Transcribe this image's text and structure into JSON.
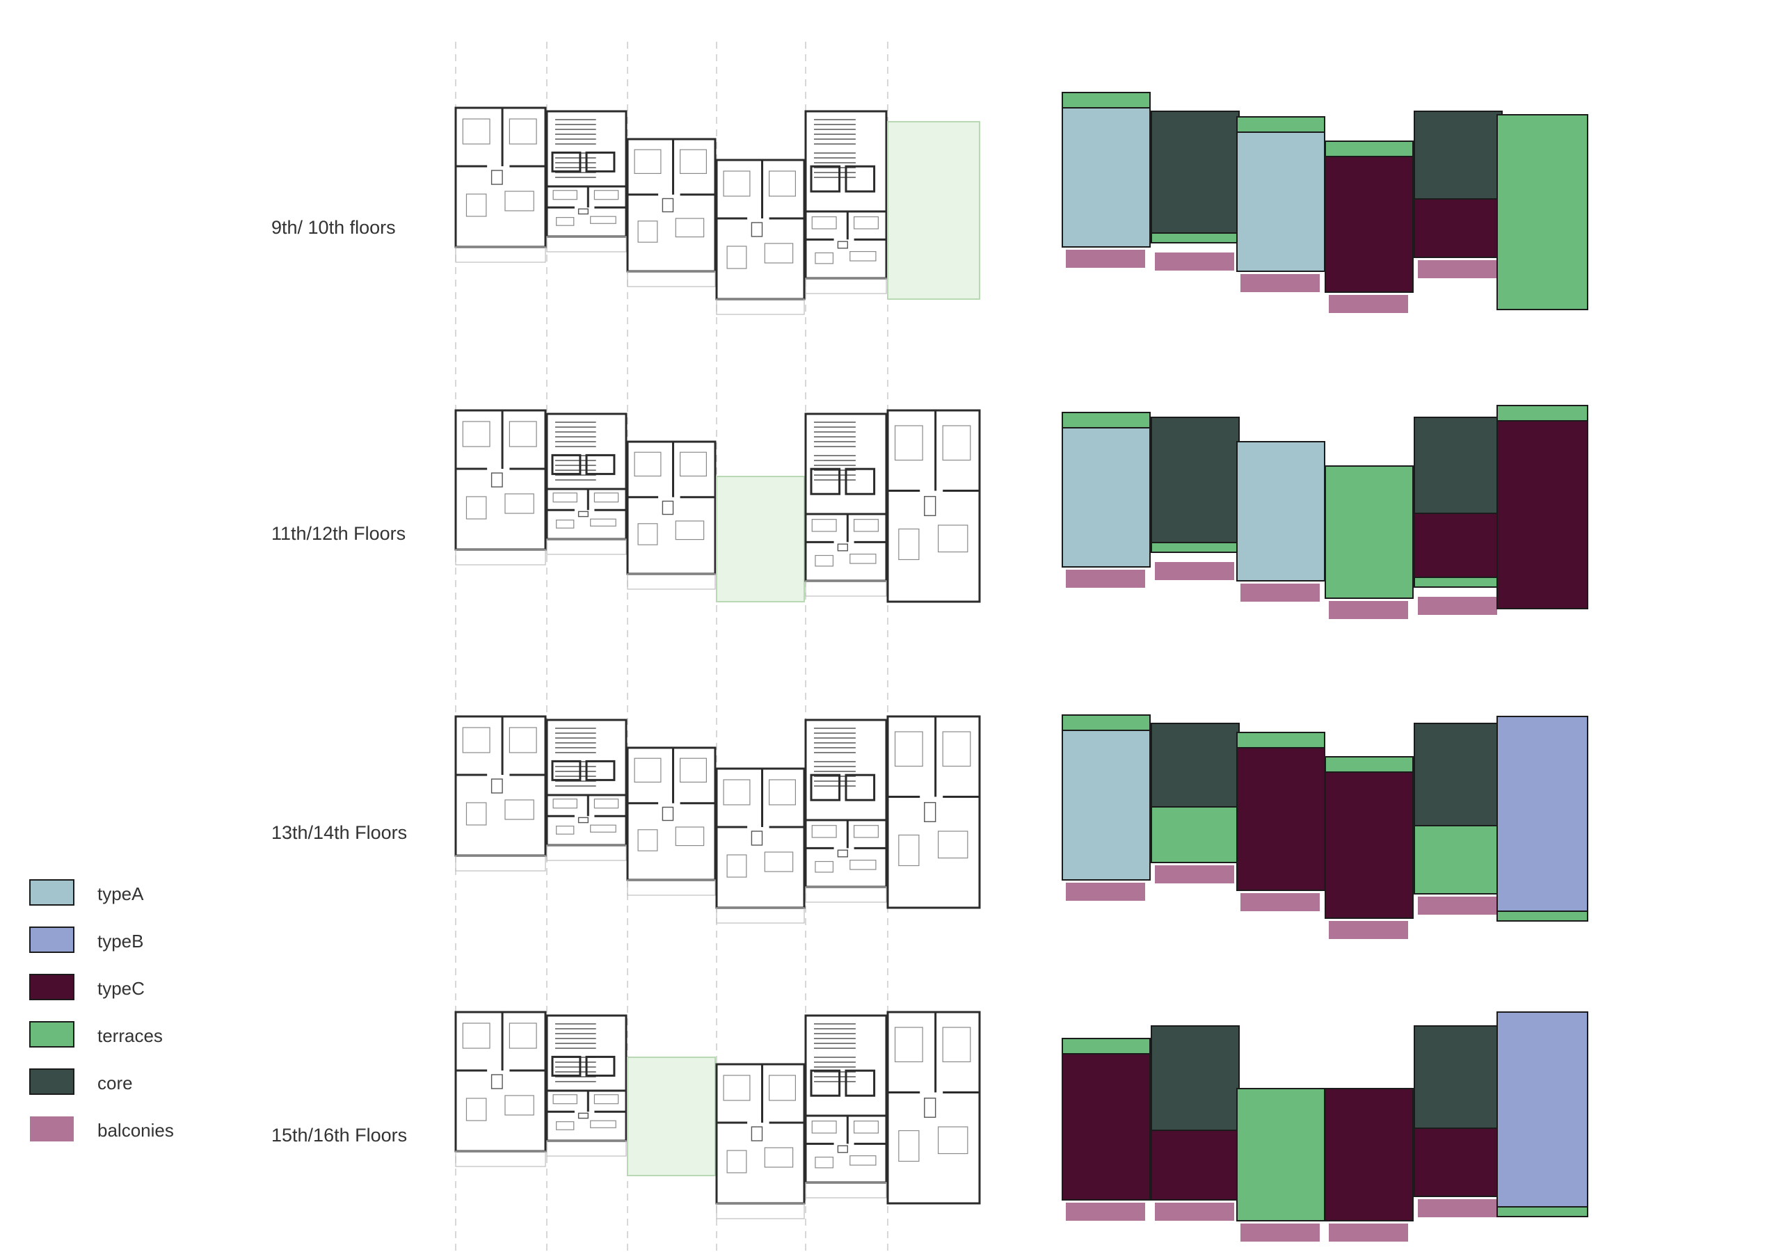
{
  "colors": {
    "typeA": "#a3c4cc",
    "typeB": "#93a2d0",
    "typeC": "#4b0d2d",
    "terraces": "#6abb7c",
    "core": "#3a4c48",
    "balconies": "#b07596",
    "terrace_plan": "#e8f4e6"
  },
  "legend": [
    {
      "key": "typeA",
      "label": "typeA"
    },
    {
      "key": "typeB",
      "label": "typeB"
    },
    {
      "key": "typeC",
      "label": "typeC"
    },
    {
      "key": "terraces",
      "label": "terraces"
    },
    {
      "key": "core",
      "label": "core"
    },
    {
      "key": "balconies",
      "label": "balconies"
    }
  ],
  "floors": [
    {
      "label": "9th/ 10th floors",
      "columns": [
        {
          "type": "typeA",
          "terrace_top": true,
          "balcony": true
        },
        {
          "type": "core",
          "terrace_bottom": true,
          "balcony": true
        },
        {
          "type": "typeA",
          "terrace_top": true,
          "balcony": true
        },
        {
          "type": "typeC",
          "terrace_top": true,
          "balcony": true
        },
        {
          "type": "core",
          "lower": "typeC",
          "balcony": true
        },
        {
          "type": "terraces",
          "balcony": false
        }
      ],
      "plan_terrace_col": 5
    },
    {
      "label": "11th/12th Floors",
      "columns": [
        {
          "type": "typeA",
          "terrace_top": true,
          "balcony": true
        },
        {
          "type": "core",
          "terrace_bottom": true,
          "balcony": true
        },
        {
          "type": "typeA",
          "balcony": true
        },
        {
          "type": "terraces",
          "balcony": true
        },
        {
          "type": "core",
          "lower": "typeC",
          "terrace_bottom": true,
          "balcony": true
        },
        {
          "type": "typeC",
          "terrace_top": true,
          "balcony": false
        }
      ],
      "plan_terrace_col": 3
    },
    {
      "label": "13th/14th Floors",
      "columns": [
        {
          "type": "typeA",
          "terrace_top": true,
          "balcony": true
        },
        {
          "type": "core",
          "lower": "terraces",
          "balcony": true
        },
        {
          "type": "typeC",
          "terrace_top": true,
          "balcony": true
        },
        {
          "type": "typeC",
          "terrace_top": true,
          "balcony": true
        },
        {
          "type": "core",
          "lower": "terraces",
          "balcony": true
        },
        {
          "type": "typeB",
          "terrace_bottom": true,
          "balcony": false
        }
      ],
      "plan_terrace_col": -1
    },
    {
      "label": "15th/16th Floors",
      "columns": [
        {
          "type": "typeC",
          "terrace_top": true,
          "balcony": true
        },
        {
          "type": "core",
          "lower": "typeC",
          "balcony": true
        },
        {
          "type": "terraces",
          "balcony": true
        },
        {
          "type": "typeC",
          "balcony": true
        },
        {
          "type": "core",
          "lower": "typeC",
          "balcony": true
        },
        {
          "type": "typeB",
          "terrace_bottom": true,
          "balcony": false
        }
      ],
      "plan_terrace_col": 2
    }
  ]
}
